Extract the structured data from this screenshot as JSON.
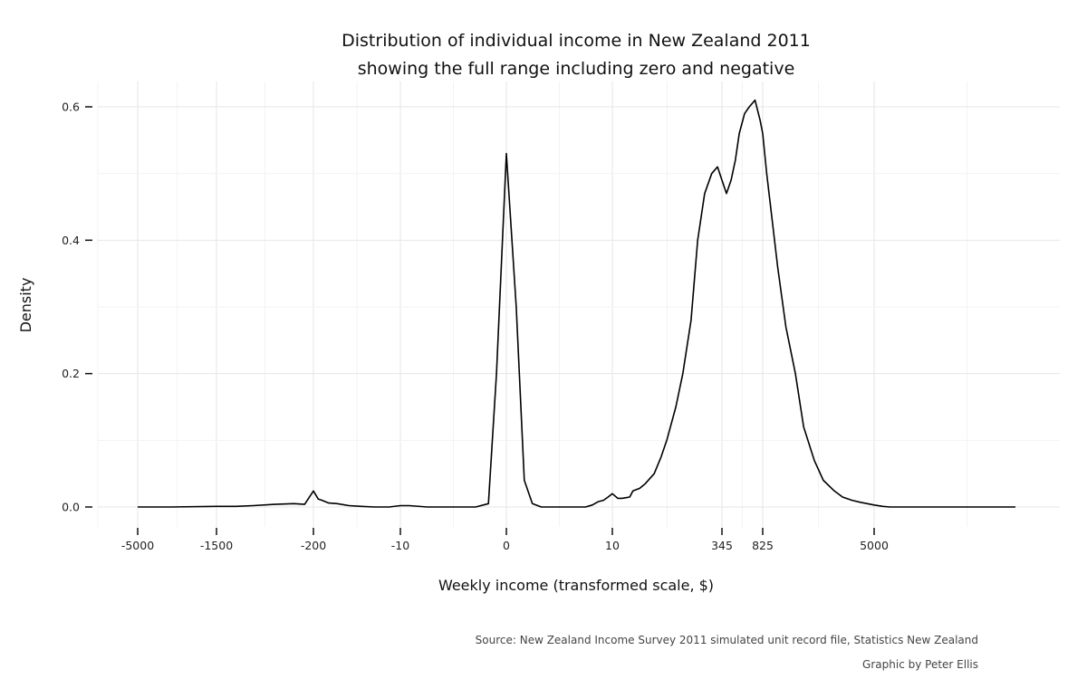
{
  "chart_data": {
    "type": "line",
    "title": "Distribution of individual income in New Zealand 2011",
    "subtitle": "showing the full range including zero and negative",
    "xlabel": "Weekly income (transformed scale, $)",
    "ylabel": "Density",
    "x_scale": "modulus-transformed (signed log)",
    "x_ticks": [
      -5000,
      -1500,
      -200,
      -10,
      0,
      10,
      345,
      825,
      5000
    ],
    "y_ticks": [
      0.0,
      0.2,
      0.4,
      0.6
    ],
    "y_tick_labels": [
      "0.0",
      "0.2",
      "0.4",
      "0.6"
    ],
    "ylim": [
      0,
      0.6
    ],
    "grid": true,
    "legend": "none",
    "series": [
      {
        "color": "#000000",
        "x": [
          -5000,
          -3000,
          -1500,
          -1000,
          -700,
          -450,
          -300,
          -240,
          -200,
          -170,
          -150,
          -120,
          -90,
          -60,
          -40,
          -25,
          -15,
          -10,
          -8,
          -5,
          -3,
          -1,
          -0.5,
          -0.25,
          0,
          0.25,
          0.5,
          0.8,
          1.2,
          2,
          3,
          4,
          5,
          6,
          7,
          8,
          9,
          10,
          12,
          14,
          16,
          18,
          20,
          25,
          30,
          40,
          50,
          60,
          80,
          100,
          130,
          160,
          200,
          250,
          300,
          345,
          380,
          420,
          460,
          500,
          560,
          620,
          700,
          780,
          825,
          880,
          950,
          1050,
          1200,
          1400,
          1600,
          1900,
          2200,
          2600,
          3000,
          3500,
          4000,
          5000,
          6000,
          7000,
          9000,
          12000,
          20000,
          40000,
          100000
        ],
        "y": [
          0.0,
          0.0,
          0.001,
          0.001,
          0.002,
          0.004,
          0.005,
          0.004,
          0.024,
          0.012,
          0.01,
          0.006,
          0.005,
          0.002,
          0.001,
          0.0,
          0.0,
          0.002,
          0.002,
          0.0,
          0.0,
          0.0,
          0.005,
          0.2,
          0.53,
          0.3,
          0.04,
          0.005,
          0.0,
          0.0,
          0.0,
          0.0,
          0.0,
          0.003,
          0.008,
          0.01,
          0.015,
          0.02,
          0.013,
          0.013,
          0.014,
          0.015,
          0.024,
          0.028,
          0.035,
          0.05,
          0.075,
          0.1,
          0.15,
          0.2,
          0.28,
          0.4,
          0.47,
          0.5,
          0.51,
          0.49,
          0.47,
          0.49,
          0.52,
          0.56,
          0.59,
          0.6,
          0.61,
          0.58,
          0.56,
          0.5,
          0.44,
          0.36,
          0.27,
          0.2,
          0.12,
          0.07,
          0.04,
          0.025,
          0.015,
          0.01,
          0.007,
          0.003,
          0.001,
          0.0,
          0.0,
          0.0,
          0.0,
          0.0,
          0.0
        ]
      }
    ]
  },
  "source_text": "Source: New Zealand Income Survey 2011 simulated unit record file, Statistics New Zealand",
  "credit_text": "Graphic by Peter Ellis"
}
